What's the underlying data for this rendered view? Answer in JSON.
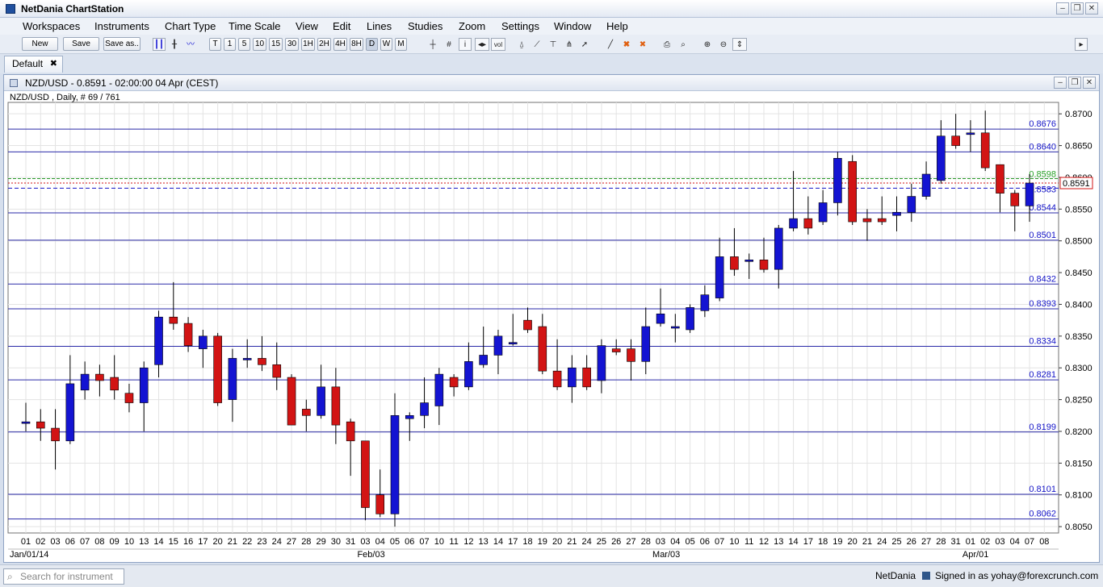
{
  "app": {
    "title": "NetDania ChartStation"
  },
  "menu": [
    "Workspaces",
    "Instruments",
    "Chart Type",
    "Time Scale",
    "View",
    "Edit",
    "Lines",
    "Studies",
    "Zoom",
    "Settings",
    "Window",
    "Help"
  ],
  "toolbar": {
    "new_label": "New",
    "save_label": "Save",
    "saveas_label": "Save as..",
    "timeframes": [
      "T",
      "1",
      "5",
      "10",
      "15",
      "30",
      "1H",
      "2H",
      "4H",
      "8H",
      "D",
      "W",
      "M"
    ],
    "tools": [
      "bars-icon",
      "candles-icon",
      "line-chart-icon",
      "crosshair-icon",
      "grid-icon",
      "info-icon",
      "arrows-icon",
      "volume-icon",
      "bell-icon",
      "trendline-icon",
      "fib-icon",
      "pitchfork-icon",
      "cursor-icon",
      "draw-line-icon",
      "delete-icon",
      "delete-all-icon",
      "print-icon",
      "print-preview-icon",
      "zoom-in-icon",
      "zoom-out-icon",
      "fit-icon"
    ]
  },
  "tab": {
    "label": "Default",
    "close": "✖"
  },
  "chart_window": {
    "title": "NZD/USD - 0.8591 - 02:00:00  04 Apr (CEST)"
  },
  "chart_data": {
    "type": "candlestick",
    "legend": "NZD/USD , Daily, # 69 / 761",
    "y_ticks": [
      0.87,
      0.865,
      0.86,
      0.855,
      0.85,
      0.845,
      0.84,
      0.835,
      0.83,
      0.825,
      0.82,
      0.815,
      0.81,
      0.805
    ],
    "y_tick_labels": [
      "0.8700",
      "0.8650",
      "0.8600",
      "0.8550",
      "0.8500",
      "0.8450",
      "0.8400",
      "0.8350",
      "0.8300",
      "0.8250",
      "0.8200",
      "0.8150",
      "0.8100",
      "0.8050"
    ],
    "ylim": [
      0.804,
      0.8718
    ],
    "hlines": [
      {
        "value": 0.8676,
        "label": "0.8676"
      },
      {
        "value": 0.864,
        "label": "0.8640"
      },
      {
        "value": 0.8544,
        "label": "0.8544"
      },
      {
        "value": 0.8501,
        "label": "0.8501"
      },
      {
        "value": 0.8432,
        "label": "0.8432"
      },
      {
        "value": 0.8393,
        "label": "0.8393"
      },
      {
        "value": 0.8334,
        "label": "0.8334"
      },
      {
        "value": 0.8281,
        "label": "0.8281"
      },
      {
        "value": 0.8199,
        "label": "0.8199"
      },
      {
        "value": 0.8101,
        "label": "0.8101"
      },
      {
        "value": 0.8062,
        "label": "0.8062"
      }
    ],
    "current_line": {
      "value": 0.8583,
      "label": "0.8583"
    },
    "green_line": {
      "value": 0.8598,
      "label": "0.8598"
    },
    "last_price": {
      "value": 0.8591,
      "label": "0.8591"
    },
    "dates": [
      "01",
      "02",
      "03",
      "06",
      "07",
      "08",
      "09",
      "10",
      "13",
      "14",
      "15",
      "16",
      "17",
      "20",
      "21",
      "22",
      "23",
      "24",
      "27",
      "28",
      "29",
      "30",
      "31",
      "03",
      "04",
      "05",
      "06",
      "07",
      "10",
      "11",
      "12",
      "13",
      "14",
      "17",
      "18",
      "19",
      "20",
      "21",
      "24",
      "25",
      "26",
      "27",
      "28",
      "03",
      "04",
      "05",
      "06",
      "07",
      "10",
      "11",
      "12",
      "13",
      "14",
      "17",
      "18",
      "19",
      "20",
      "21",
      "24",
      "25",
      "26",
      "27",
      "28",
      "31",
      "01",
      "02",
      "03",
      "04",
      "07",
      "08"
    ],
    "month_labels": [
      {
        "index": 0,
        "label": "Jan/01/14"
      },
      {
        "index": 23,
        "label": "Feb/03"
      },
      {
        "index": 43,
        "label": "Mar/03"
      },
      {
        "index": 64,
        "label": "Apr/01"
      }
    ],
    "candles": [
      {
        "o": 0.8215,
        "h": 0.8245,
        "l": 0.82,
        "c": 0.8215
      },
      {
        "o": 0.8215,
        "h": 0.8235,
        "l": 0.8185,
        "c": 0.8205
      },
      {
        "o": 0.8205,
        "h": 0.8235,
        "l": 0.814,
        "c": 0.8185
      },
      {
        "o": 0.8185,
        "h": 0.832,
        "l": 0.818,
        "c": 0.8275
      },
      {
        "o": 0.8265,
        "h": 0.831,
        "l": 0.825,
        "c": 0.829
      },
      {
        "o": 0.829,
        "h": 0.8305,
        "l": 0.8255,
        "c": 0.828
      },
      {
        "o": 0.8285,
        "h": 0.832,
        "l": 0.825,
        "c": 0.8265
      },
      {
        "o": 0.826,
        "h": 0.8275,
        "l": 0.823,
        "c": 0.8245
      },
      {
        "o": 0.8245,
        "h": 0.831,
        "l": 0.82,
        "c": 0.83
      },
      {
        "o": 0.8305,
        "h": 0.839,
        "l": 0.8285,
        "c": 0.838
      },
      {
        "o": 0.838,
        "h": 0.8435,
        "l": 0.836,
        "c": 0.837
      },
      {
        "o": 0.837,
        "h": 0.838,
        "l": 0.8325,
        "c": 0.8335
      },
      {
        "o": 0.833,
        "h": 0.836,
        "l": 0.83,
        "c": 0.835
      },
      {
        "o": 0.835,
        "h": 0.8355,
        "l": 0.824,
        "c": 0.8245
      },
      {
        "o": 0.825,
        "h": 0.833,
        "l": 0.8215,
        "c": 0.8315
      },
      {
        "o": 0.8315,
        "h": 0.8345,
        "l": 0.83,
        "c": 0.8315
      },
      {
        "o": 0.8315,
        "h": 0.835,
        "l": 0.8295,
        "c": 0.8305
      },
      {
        "o": 0.8305,
        "h": 0.834,
        "l": 0.8265,
        "c": 0.8285
      },
      {
        "o": 0.8285,
        "h": 0.829,
        "l": 0.821,
        "c": 0.821
      },
      {
        "o": 0.8235,
        "h": 0.825,
        "l": 0.82,
        "c": 0.8225
      },
      {
        "o": 0.8225,
        "h": 0.8305,
        "l": 0.822,
        "c": 0.827
      },
      {
        "o": 0.827,
        "h": 0.83,
        "l": 0.818,
        "c": 0.821
      },
      {
        "o": 0.8215,
        "h": 0.822,
        "l": 0.813,
        "c": 0.8185
      },
      {
        "o": 0.8185,
        "h": 0.8185,
        "l": 0.806,
        "c": 0.808
      },
      {
        "o": 0.81,
        "h": 0.814,
        "l": 0.8065,
        "c": 0.807
      },
      {
        "o": 0.807,
        "h": 0.826,
        "l": 0.805,
        "c": 0.8225
      },
      {
        "o": 0.822,
        "h": 0.823,
        "l": 0.8185,
        "c": 0.8225
      },
      {
        "o": 0.8225,
        "h": 0.8285,
        "l": 0.8205,
        "c": 0.8245
      },
      {
        "o": 0.824,
        "h": 0.83,
        "l": 0.821,
        "c": 0.829
      },
      {
        "o": 0.8285,
        "h": 0.829,
        "l": 0.8255,
        "c": 0.827
      },
      {
        "o": 0.827,
        "h": 0.834,
        "l": 0.8265,
        "c": 0.831
      },
      {
        "o": 0.8305,
        "h": 0.8365,
        "l": 0.83,
        "c": 0.832
      },
      {
        "o": 0.832,
        "h": 0.836,
        "l": 0.829,
        "c": 0.835
      },
      {
        "o": 0.834,
        "h": 0.8385,
        "l": 0.8335,
        "c": 0.834
      },
      {
        "o": 0.8375,
        "h": 0.8395,
        "l": 0.8355,
        "c": 0.836
      },
      {
        "o": 0.8365,
        "h": 0.8385,
        "l": 0.829,
        "c": 0.8295
      },
      {
        "o": 0.8295,
        "h": 0.8345,
        "l": 0.8265,
        "c": 0.827
      },
      {
        "o": 0.827,
        "h": 0.832,
        "l": 0.8245,
        "c": 0.83
      },
      {
        "o": 0.83,
        "h": 0.832,
        "l": 0.8265,
        "c": 0.827
      },
      {
        "o": 0.828,
        "h": 0.8345,
        "l": 0.826,
        "c": 0.8335
      },
      {
        "o": 0.833,
        "h": 0.8345,
        "l": 0.832,
        "c": 0.8325
      },
      {
        "o": 0.833,
        "h": 0.8345,
        "l": 0.828,
        "c": 0.831
      },
      {
        "o": 0.831,
        "h": 0.8395,
        "l": 0.829,
        "c": 0.8365
      },
      {
        "o": 0.837,
        "h": 0.8425,
        "l": 0.8365,
        "c": 0.8385
      },
      {
        "o": 0.8365,
        "h": 0.8385,
        "l": 0.834,
        "c": 0.8365
      },
      {
        "o": 0.836,
        "h": 0.84,
        "l": 0.8355,
        "c": 0.8395
      },
      {
        "o": 0.839,
        "h": 0.843,
        "l": 0.838,
        "c": 0.8415
      },
      {
        "o": 0.841,
        "h": 0.8505,
        "l": 0.8405,
        "c": 0.8475
      },
      {
        "o": 0.8475,
        "h": 0.852,
        "l": 0.8445,
        "c": 0.8455
      },
      {
        "o": 0.847,
        "h": 0.848,
        "l": 0.844,
        "c": 0.847
      },
      {
        "o": 0.847,
        "h": 0.8505,
        "l": 0.845,
        "c": 0.8455
      },
      {
        "o": 0.8455,
        "h": 0.8525,
        "l": 0.8425,
        "c": 0.852
      },
      {
        "o": 0.852,
        "h": 0.861,
        "l": 0.8515,
        "c": 0.8535
      },
      {
        "o": 0.8535,
        "h": 0.857,
        "l": 0.851,
        "c": 0.852
      },
      {
        "o": 0.853,
        "h": 0.858,
        "l": 0.8525,
        "c": 0.856
      },
      {
        "o": 0.856,
        "h": 0.864,
        "l": 0.854,
        "c": 0.863
      },
      {
        "o": 0.8625,
        "h": 0.8635,
        "l": 0.8525,
        "c": 0.853
      },
      {
        "o": 0.8535,
        "h": 0.855,
        "l": 0.85,
        "c": 0.853
      },
      {
        "o": 0.8535,
        "h": 0.857,
        "l": 0.8525,
        "c": 0.853
      },
      {
        "o": 0.854,
        "h": 0.857,
        "l": 0.8515,
        "c": 0.8545
      },
      {
        "o": 0.8545,
        "h": 0.859,
        "l": 0.853,
        "c": 0.857
      },
      {
        "o": 0.857,
        "h": 0.8625,
        "l": 0.8565,
        "c": 0.8605
      },
      {
        "o": 0.8595,
        "h": 0.869,
        "l": 0.859,
        "c": 0.8665
      },
      {
        "o": 0.8665,
        "h": 0.87,
        "l": 0.8645,
        "c": 0.865
      },
      {
        "o": 0.867,
        "h": 0.869,
        "l": 0.864,
        "c": 0.867
      },
      {
        "o": 0.867,
        "h": 0.8705,
        "l": 0.861,
        "c": 0.8615
      },
      {
        "o": 0.862,
        "h": 0.862,
        "l": 0.8545,
        "c": 0.8575
      },
      {
        "o": 0.8575,
        "h": 0.858,
        "l": 0.8515,
        "c": 0.8555
      },
      {
        "o": 0.8555,
        "h": 0.8605,
        "l": 0.853,
        "c": 0.8591
      }
    ]
  },
  "status": {
    "search_placeholder": "Search for instrument",
    "brand": "NetDania",
    "signed_in": "Signed in as yohay@forexcrunch.com"
  },
  "colors": {
    "bull": "#1414d2",
    "bear": "#d21414",
    "hline": "#2a2aa8",
    "grid": "#e3e3e3"
  }
}
